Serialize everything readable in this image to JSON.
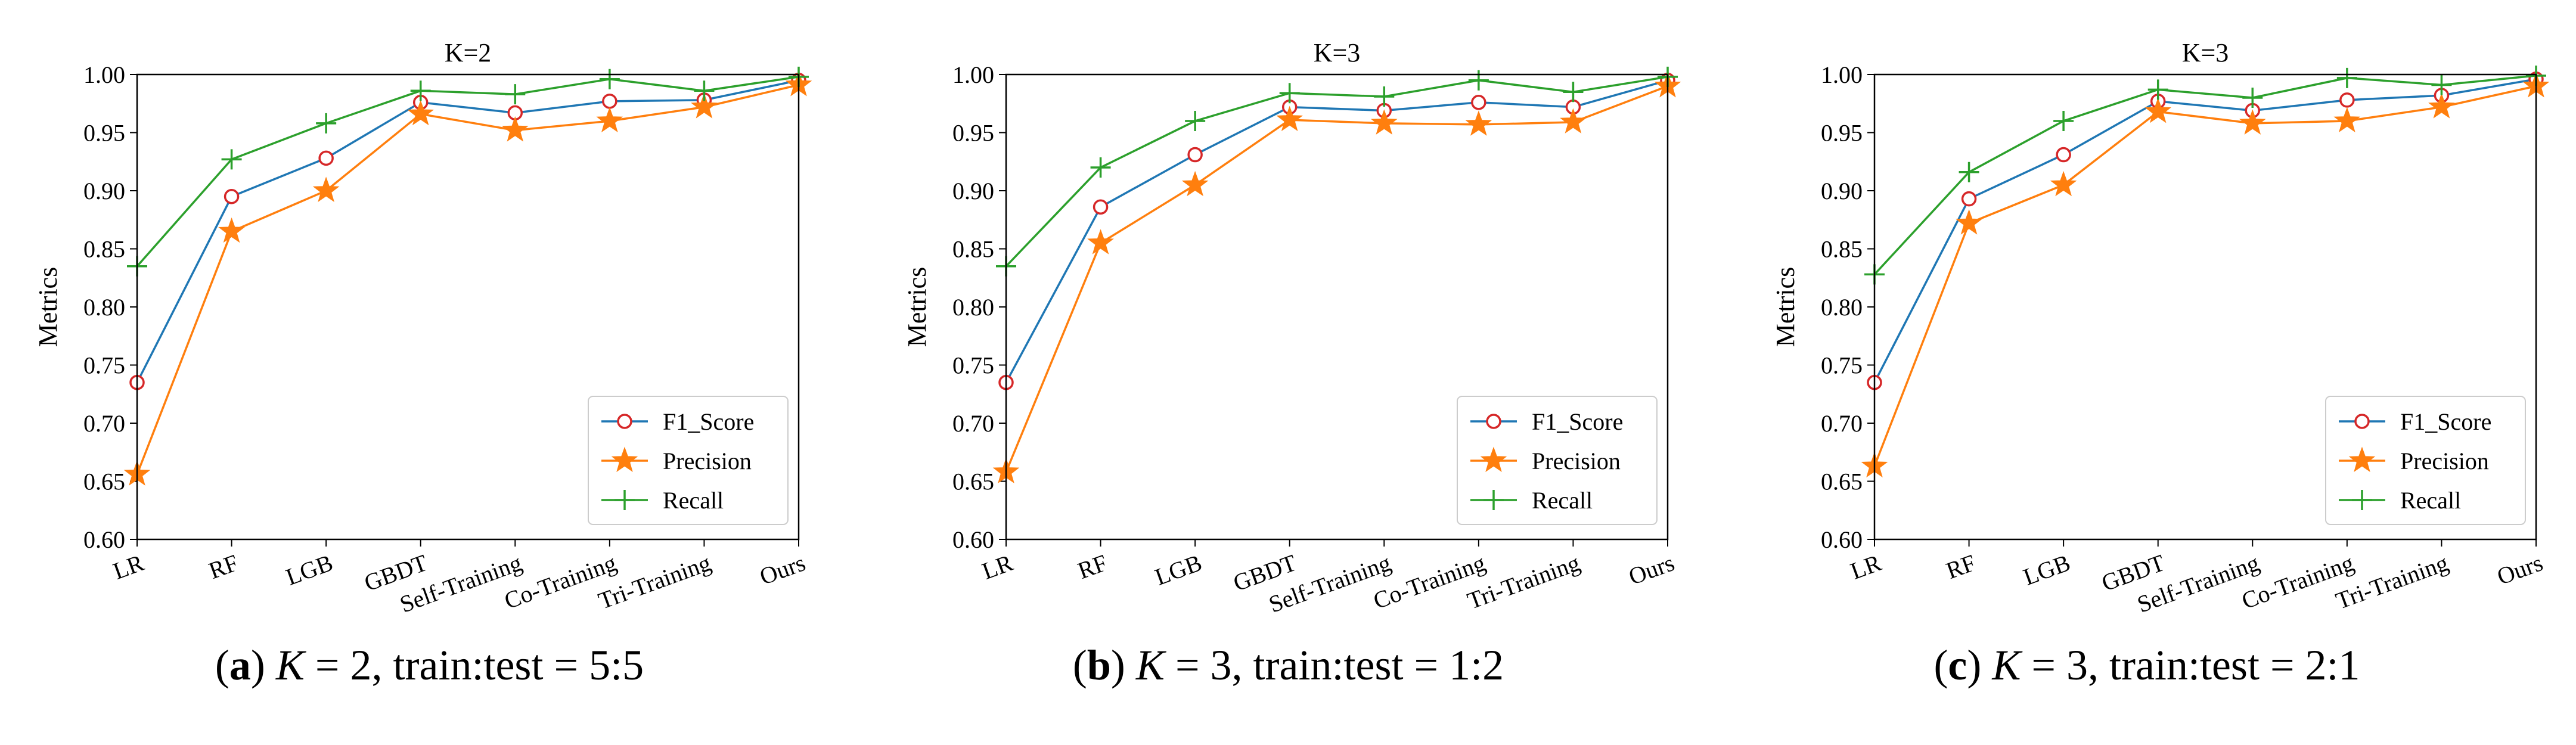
{
  "chart_data": [
    {
      "type": "line",
      "title": "K=2",
      "ylabel": "Metrics",
      "xlabel": "",
      "categories": [
        "LR",
        "RF",
        "LGB",
        "GBDT",
        "Self-Training",
        "Co-Training",
        "Tri-Training",
        "Ours"
      ],
      "ylim": [
        0.6,
        1.0
      ],
      "yticks": [
        "0.60",
        "0.65",
        "0.70",
        "0.75",
        "0.80",
        "0.85",
        "0.90",
        "0.95",
        "1.00"
      ],
      "legend_position": "lower-right",
      "grid": false,
      "series": [
        {
          "name": "F1_Score",
          "color": "#1f77b4",
          "marker": "circle",
          "values": [
            0.735,
            0.895,
            0.928,
            0.976,
            0.967,
            0.977,
            0.978,
            0.995
          ]
        },
        {
          "name": "Precision",
          "color": "#ff7f0e",
          "marker": "star",
          "values": [
            0.656,
            0.865,
            0.9,
            0.966,
            0.952,
            0.96,
            0.972,
            0.991
          ]
        },
        {
          "name": "Recall",
          "color": "#2ca02c",
          "marker": "plus",
          "values": [
            0.835,
            0.927,
            0.958,
            0.986,
            0.983,
            0.996,
            0.986,
            0.998
          ]
        }
      ],
      "caption": {
        "letter": "a",
        "k_var": "K",
        "rest": " = 2, train:test = 5:5"
      }
    },
    {
      "type": "line",
      "title": "K=3",
      "ylabel": "Metrics",
      "xlabel": "",
      "categories": [
        "LR",
        "RF",
        "LGB",
        "GBDT",
        "Self-Training",
        "Co-Training",
        "Tri-Training",
        "Ours"
      ],
      "ylim": [
        0.6,
        1.0
      ],
      "yticks": [
        "0.60",
        "0.65",
        "0.70",
        "0.75",
        "0.80",
        "0.85",
        "0.90",
        "0.95",
        "1.00"
      ],
      "legend_position": "lower-right",
      "grid": false,
      "series": [
        {
          "name": "F1_Score",
          "color": "#1f77b4",
          "marker": "circle",
          "values": [
            0.735,
            0.886,
            0.931,
            0.972,
            0.969,
            0.976,
            0.972,
            0.995
          ]
        },
        {
          "name": "Precision",
          "color": "#ff7f0e",
          "marker": "star",
          "values": [
            0.658,
            0.855,
            0.905,
            0.961,
            0.958,
            0.957,
            0.959,
            0.99
          ]
        },
        {
          "name": "Recall",
          "color": "#2ca02c",
          "marker": "plus",
          "values": [
            0.835,
            0.92,
            0.96,
            0.984,
            0.981,
            0.995,
            0.985,
            0.998
          ]
        }
      ],
      "caption": {
        "letter": "b",
        "k_var": "K",
        "rest": " = 3, train:test = 1:2"
      }
    },
    {
      "type": "line",
      "title": "K=3",
      "ylabel": "Metrics",
      "xlabel": "",
      "categories": [
        "LR",
        "RF",
        "LGB",
        "GBDT",
        "Self-Training",
        "Co-Training",
        "Tri-Training",
        "Ours"
      ],
      "ylim": [
        0.6,
        1.0
      ],
      "yticks": [
        "0.60",
        "0.65",
        "0.70",
        "0.75",
        "0.80",
        "0.85",
        "0.90",
        "0.95",
        "1.00"
      ],
      "legend_position": "lower-right",
      "grid": false,
      "series": [
        {
          "name": "F1_Score",
          "color": "#1f77b4",
          "marker": "circle",
          "values": [
            0.735,
            0.893,
            0.931,
            0.977,
            0.969,
            0.978,
            0.982,
            0.996
          ]
        },
        {
          "name": "Precision",
          "color": "#ff7f0e",
          "marker": "star",
          "values": [
            0.663,
            0.872,
            0.905,
            0.968,
            0.958,
            0.96,
            0.972,
            0.99
          ]
        },
        {
          "name": "Recall",
          "color": "#2ca02c",
          "marker": "plus",
          "values": [
            0.828,
            0.916,
            0.96,
            0.987,
            0.98,
            0.997,
            0.991,
            0.999
          ]
        }
      ],
      "caption": {
        "letter": "c",
        "k_var": "K",
        "rest": " = 3, train:test = 2:1"
      }
    }
  ]
}
